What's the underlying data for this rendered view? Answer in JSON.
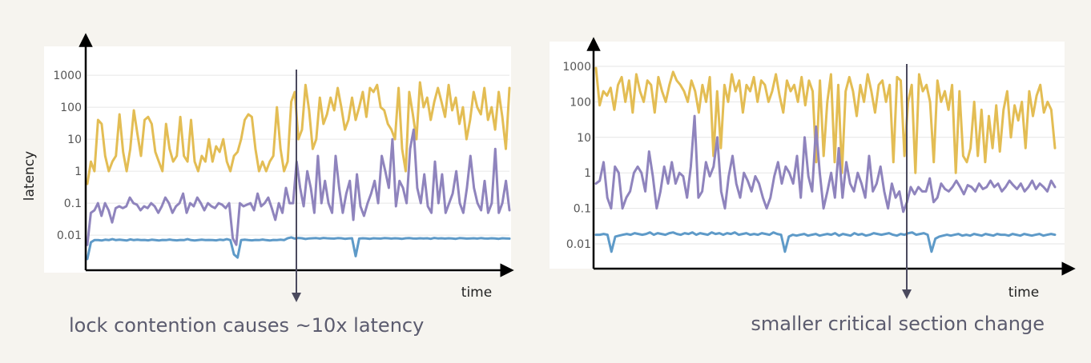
{
  "colors": {
    "background": "#f6f4ef",
    "panel": "#ffffff",
    "gridline": "#e6e6e6",
    "axis": "#000000",
    "marker": "#4b4a5e",
    "caption": "#5b5b6e"
  },
  "left": {
    "ylabel": "latency",
    "xlabel": "time",
    "caption": "lock contention causes ~10x latency"
  },
  "right": {
    "xlabel": "time",
    "caption": "smaller critical section change"
  },
  "chart_data": [
    {
      "type": "line",
      "title": "",
      "xlabel": "time",
      "ylabel": "latency",
      "yscale": "log",
      "ylim": [
        0.0008,
        8000
      ],
      "yticks": [
        "1000",
        "100",
        "10",
        "1",
        "0.1",
        "0.01"
      ],
      "grid": true,
      "legend": "none",
      "marker_at_fraction": 0.5,
      "series": [
        {
          "color": "#e3bd54",
          "values": [
            0.4,
            2,
            1,
            40,
            30,
            3,
            1,
            2,
            3,
            60,
            4,
            1,
            5,
            80,
            15,
            3,
            40,
            50,
            30,
            4,
            2,
            1,
            30,
            5,
            2,
            3,
            50,
            3,
            2,
            40,
            2,
            1,
            3,
            2,
            10,
            2,
            6,
            4,
            10,
            2,
            1,
            3,
            4,
            10,
            40,
            60,
            50,
            5,
            1,
            2,
            1,
            2,
            3,
            100,
            5,
            1,
            2,
            150,
            300,
            10,
            20,
            500,
            80,
            5,
            10,
            200,
            30,
            60,
            200,
            80,
            400,
            100,
            20,
            40,
            200,
            40,
            100,
            300,
            50,
            400,
            300,
            500,
            100,
            80,
            30,
            20,
            10,
            400,
            5,
            1,
            300,
            60,
            10,
            600,
            100,
            200,
            40,
            150,
            400,
            150,
            50,
            500,
            80,
            200,
            30,
            100,
            10,
            40,
            300,
            100,
            60,
            400,
            40,
            100,
            20,
            300,
            50,
            5,
            400
          ]
        },
        {
          "color": "#8f84bd",
          "values": [
            0.005,
            0.05,
            0.06,
            0.1,
            0.04,
            0.1,
            0.06,
            0.025,
            0.07,
            0.08,
            0.07,
            0.08,
            0.15,
            0.1,
            0.09,
            0.06,
            0.08,
            0.07,
            0.1,
            0.08,
            0.05,
            0.08,
            0.15,
            0.1,
            0.05,
            0.08,
            0.1,
            0.2,
            0.05,
            0.1,
            0.08,
            0.15,
            0.1,
            0.06,
            0.1,
            0.08,
            0.07,
            0.1,
            0.09,
            0.07,
            0.1,
            0.008,
            0.005,
            0.1,
            0.08,
            0.09,
            0.1,
            0.06,
            0.2,
            0.08,
            0.1,
            0.15,
            0.07,
            0.03,
            0.1,
            0.05,
            0.3,
            0.1,
            0.1,
            2,
            0.3,
            0.08,
            1,
            0.3,
            0.05,
            3,
            0.1,
            0.5,
            0.1,
            0.05,
            3,
            0.3,
            0.05,
            0.2,
            0.5,
            0.03,
            0.8,
            0.08,
            0.04,
            0.1,
            0.2,
            0.5,
            0.1,
            3,
            1,
            0.3,
            10,
            0.08,
            0.5,
            0.3,
            0.1,
            5,
            20,
            0.3,
            0.1,
            0.8,
            0.08,
            0.05,
            2,
            0.1,
            0.8,
            0.05,
            0.1,
            0.2,
            1,
            0.1,
            0.05,
            0.3,
            3,
            0.3,
            0.1,
            0.06,
            0.5,
            0.05,
            0.1,
            5,
            0.05,
            0.1,
            0.5,
            0.06
          ]
        },
        {
          "color": "#5e9ac8",
          "values": [
            0.0018,
            0.006,
            0.007,
            0.007,
            0.0068,
            0.0072,
            0.007,
            0.0075,
            0.007,
            0.0072,
            0.007,
            0.0068,
            0.0074,
            0.007,
            0.0072,
            0.007,
            0.0071,
            0.0069,
            0.0072,
            0.007,
            0.0068,
            0.0071,
            0.007,
            0.0073,
            0.007,
            0.0069,
            0.0071,
            0.007,
            0.0075,
            0.007,
            0.0068,
            0.007,
            0.0072,
            0.007,
            0.0071,
            0.007,
            0.0069,
            0.0072,
            0.007,
            0.0075,
            0.007,
            0.0025,
            0.002,
            0.007,
            0.0072,
            0.007,
            0.0069,
            0.0071,
            0.007,
            0.0073,
            0.007,
            0.0068,
            0.0071,
            0.007,
            0.0072,
            0.007,
            0.008,
            0.0085,
            0.0078,
            0.0082,
            0.008,
            0.0076,
            0.0079,
            0.008,
            0.0081,
            0.0078,
            0.0082,
            0.008,
            0.0079,
            0.0078,
            0.0081,
            0.008,
            0.0077,
            0.0079,
            0.008,
            0.0022,
            0.0078,
            0.008,
            0.0079,
            0.0077,
            0.008,
            0.0079,
            0.0078,
            0.0081,
            0.008,
            0.0078,
            0.008,
            0.0079,
            0.0077,
            0.008,
            0.0081,
            0.0079,
            0.0078,
            0.008,
            0.0079,
            0.008,
            0.0077,
            0.0082,
            0.0079,
            0.008,
            0.0078,
            0.008,
            0.0079,
            0.0077,
            0.0081,
            0.008,
            0.0078,
            0.0079,
            0.008,
            0.0078,
            0.0081,
            0.0079,
            0.0078,
            0.008,
            0.0079,
            0.0077,
            0.008,
            0.0079,
            0.0078
          ]
        }
      ]
    },
    {
      "type": "line",
      "title": "",
      "xlabel": "time",
      "ylabel": "",
      "yscale": "log",
      "ylim": [
        0.002,
        5000
      ],
      "yticks": [
        "1000",
        "100",
        "10",
        "1",
        "0.1",
        "0.01"
      ],
      "grid": true,
      "legend": "none",
      "marker_at_fraction": 0.68,
      "series": [
        {
          "color": "#e3bd54",
          "values": [
            900,
            80,
            200,
            150,
            250,
            60,
            300,
            500,
            100,
            400,
            50,
            600,
            200,
            100,
            400,
            300,
            50,
            500,
            200,
            100,
            300,
            700,
            400,
            300,
            200,
            100,
            400,
            200,
            50,
            300,
            100,
            500,
            3,
            200,
            5,
            300,
            100,
            600,
            200,
            400,
            50,
            300,
            200,
            500,
            100,
            400,
            300,
            100,
            200,
            600,
            150,
            50,
            400,
            200,
            300,
            100,
            500,
            80,
            400,
            200,
            2,
            400,
            3,
            100,
            600,
            2,
            300,
            1,
            200,
            500,
            200,
            40,
            300,
            100,
            600,
            200,
            50,
            300,
            400,
            100,
            300,
            2,
            500,
            400,
            3,
            100,
            300,
            1,
            600,
            200,
            300,
            100,
            2,
            400,
            100,
            200,
            60,
            300,
            1,
            200,
            3,
            2,
            5,
            100,
            3,
            60,
            2,
            40,
            5,
            80,
            4,
            60,
            200,
            10,
            80,
            30,
            100,
            5,
            200,
            40,
            150,
            300,
            50,
            100,
            60,
            5
          ]
        },
        {
          "color": "#8f84bd",
          "values": [
            0.5,
            0.6,
            2,
            0.2,
            0.1,
            1.5,
            1,
            0.1,
            0.2,
            0.3,
            1,
            1.5,
            1,
            0.3,
            4,
            0.8,
            0.1,
            0.3,
            1.5,
            0.5,
            2,
            0.5,
            1,
            0.8,
            0.2,
            1.5,
            40,
            0.2,
            0.3,
            2,
            0.8,
            1.5,
            10,
            0.3,
            0.1,
            0.8,
            3,
            0.5,
            0.2,
            1,
            0.6,
            0.3,
            0.8,
            0.5,
            0.2,
            0.1,
            0.2,
            0.8,
            2,
            0.5,
            1.5,
            1,
            0.5,
            3,
            0.2,
            10,
            0.8,
            0.3,
            20,
            1,
            0.1,
            0.3,
            1,
            0.2,
            5,
            0.2,
            2,
            0.5,
            0.3,
            1,
            0.5,
            0.2,
            3,
            0.3,
            0.5,
            1.5,
            0.3,
            0.1,
            0.5,
            0.2,
            0.3,
            0.08,
            0.15,
            0.4,
            0.25,
            0.4,
            0.3,
            0.3,
            0.7,
            0.15,
            0.2,
            0.5,
            0.35,
            0.3,
            0.4,
            0.6,
            0.4,
            0.25,
            0.45,
            0.4,
            0.3,
            0.5,
            0.35,
            0.4,
            0.6,
            0.4,
            0.5,
            0.3,
            0.4,
            0.6,
            0.45,
            0.35,
            0.5,
            0.3,
            0.4,
            0.6,
            0.35,
            0.5,
            0.4,
            0.3,
            0.6,
            0.4
          ]
        },
        {
          "color": "#5e9ac8",
          "values": [
            0.018,
            0.018,
            0.019,
            0.018,
            0.006,
            0.016,
            0.017,
            0.018,
            0.019,
            0.018,
            0.02,
            0.019,
            0.018,
            0.019,
            0.021,
            0.018,
            0.02,
            0.019,
            0.018,
            0.02,
            0.021,
            0.019,
            0.018,
            0.02,
            0.019,
            0.021,
            0.018,
            0.02,
            0.019,
            0.018,
            0.021,
            0.019,
            0.02,
            0.018,
            0.02,
            0.019,
            0.021,
            0.018,
            0.019,
            0.02,
            0.018,
            0.019,
            0.018,
            0.02,
            0.019,
            0.018,
            0.021,
            0.019,
            0.018,
            0.006,
            0.016,
            0.018,
            0.017,
            0.018,
            0.019,
            0.017,
            0.018,
            0.019,
            0.017,
            0.018,
            0.019,
            0.018,
            0.02,
            0.017,
            0.019,
            0.018,
            0.017,
            0.02,
            0.018,
            0.019,
            0.017,
            0.018,
            0.02,
            0.019,
            0.018,
            0.019,
            0.02,
            0.018,
            0.017,
            0.019,
            0.018,
            0.02,
            0.021,
            0.018,
            0.019,
            0.02,
            0.018,
            0.006,
            0.014,
            0.016,
            0.017,
            0.018,
            0.017,
            0.018,
            0.019,
            0.017,
            0.018,
            0.017,
            0.019,
            0.018,
            0.017,
            0.019,
            0.018,
            0.017,
            0.019,
            0.018,
            0.018,
            0.017,
            0.019,
            0.018,
            0.017,
            0.019,
            0.018,
            0.017,
            0.018,
            0.019,
            0.017,
            0.018,
            0.019,
            0.018
          ]
        }
      ]
    }
  ]
}
